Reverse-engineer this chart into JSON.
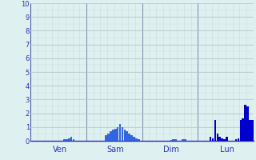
{
  "background_color": "#dff0f0",
  "plot_bg_color": "#dff0f0",
  "grid_color_major": "#b0c8c8",
  "grid_color_minor": "#c8dcdc",
  "bar_color_dark": "#0000cc",
  "bar_color_light": "#3366dd",
  "ylim": [
    0,
    10
  ],
  "yticks": [
    0,
    1,
    2,
    3,
    4,
    5,
    6,
    7,
    8,
    9,
    10
  ],
  "day_labels": [
    "Ven",
    "Sam",
    "Dim",
    "Lun"
  ],
  "n_bars": 96,
  "bars_per_day": 24,
  "values": [
    0,
    0,
    0,
    0,
    0,
    0,
    0,
    0,
    0,
    0,
    0,
    0,
    0,
    0,
    0.1,
    0.1,
    0.2,
    0.3,
    0.1,
    0,
    0,
    0,
    0,
    0,
    0,
    0,
    0,
    0,
    0,
    0,
    0,
    0,
    0.4,
    0.5,
    0.7,
    0.8,
    0.9,
    1.0,
    1.2,
    1.0,
    0.8,
    0.7,
    0.5,
    0.4,
    0.3,
    0.2,
    0.1,
    0,
    0,
    0,
    0,
    0,
    0,
    0,
    0,
    0,
    0,
    0,
    0,
    0,
    0.05,
    0.1,
    0.1,
    0,
    0,
    0.1,
    0.1,
    0,
    0,
    0,
    0,
    0,
    0,
    0,
    0,
    0,
    0,
    0.3,
    0.2,
    1.5,
    0.5,
    0.3,
    0.2,
    0.1,
    0.3,
    0,
    0,
    0,
    0.1,
    0.2,
    1.5,
    1.6,
    2.6,
    2.5,
    1.5,
    1.5
  ]
}
